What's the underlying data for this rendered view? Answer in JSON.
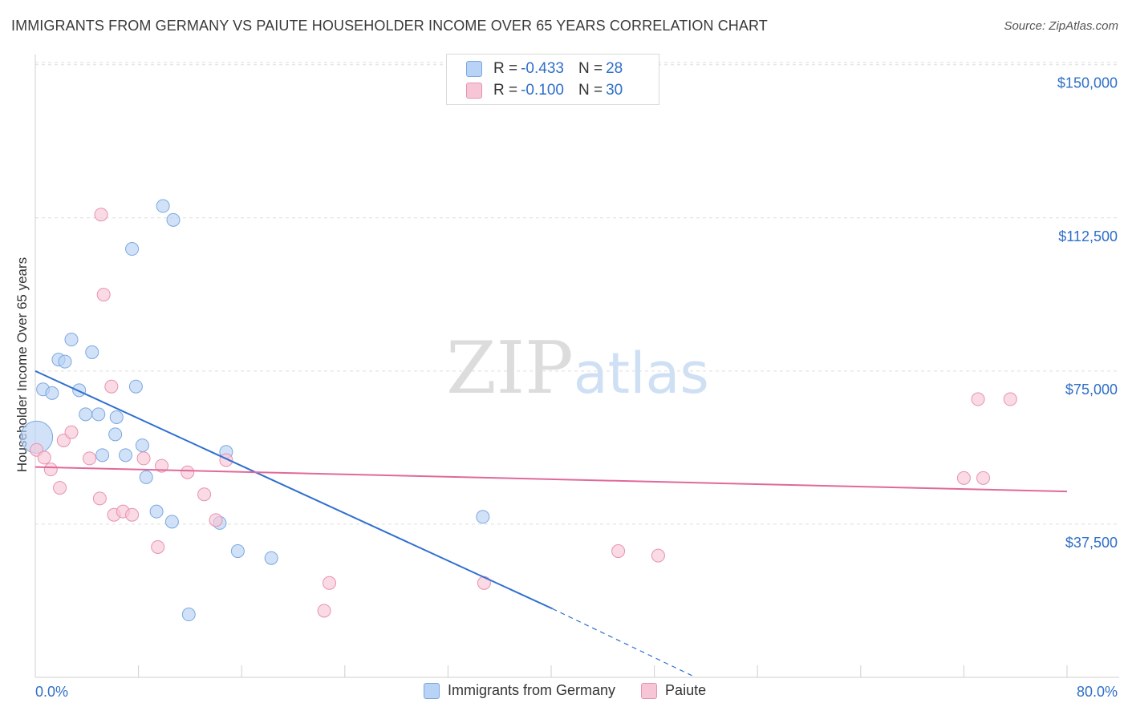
{
  "chart_data": {
    "type": "scatter",
    "title": "IMMIGRANTS FROM GERMANY VS PAIUTE HOUSEHOLDER INCOME OVER 65 YEARS CORRELATION CHART",
    "source": "Source: ZipAtlas.com",
    "xlabel": "",
    "ylabel": "Householder Income Over 65 years",
    "xlim": [
      0,
      80
    ],
    "ylim": [
      0,
      152500
    ],
    "x_tick_labels": [
      "0.0%",
      "80.0%"
    ],
    "y_ticks": [
      37500,
      75000,
      112500,
      150000
    ],
    "y_tick_labels": [
      "$37,500",
      "$75,000",
      "$112,500",
      "$150,000"
    ],
    "watermark": "ZIPatlas",
    "colors": {
      "germany_fill": "#b8d3f5",
      "germany_stroke": "#7aa8e0",
      "germany_line": "#2f6fd0",
      "paiute_fill": "#f7c6d6",
      "paiute_stroke": "#e892b0",
      "paiute_line": "#e0699a",
      "axis_text": "#2f6fc8",
      "grid": "#dedede"
    },
    "legend_stats": [
      {
        "r_label": "R =",
        "r_value": "-0.433",
        "n_label": "N =",
        "n_value": "28"
      },
      {
        "r_label": "R =",
        "r_value": "-0.100",
        "n_label": "N =",
        "n_value": "30"
      }
    ],
    "series": [
      {
        "name": "Immigrants from Germany",
        "points": [
          [
            0.1,
            58800,
            2.5
          ],
          [
            0.6,
            70500,
            1
          ],
          [
            1.3,
            69600,
            1
          ],
          [
            1.8,
            77800,
            1
          ],
          [
            2.3,
            77300,
            1
          ],
          [
            2.8,
            82700,
            1
          ],
          [
            3.4,
            70300,
            1
          ],
          [
            3.9,
            64400,
            1
          ],
          [
            4.4,
            79600,
            1
          ],
          [
            4.9,
            64400,
            1
          ],
          [
            5.2,
            54400,
            1
          ],
          [
            6.2,
            59500,
            1
          ],
          [
            6.3,
            63700,
            1
          ],
          [
            7.0,
            54400,
            1
          ],
          [
            7.5,
            104900,
            1
          ],
          [
            7.8,
            71200,
            1
          ],
          [
            8.3,
            56800,
            1
          ],
          [
            8.6,
            49000,
            1
          ],
          [
            9.4,
            40600,
            1
          ],
          [
            9.9,
            115400,
            1
          ],
          [
            10.6,
            38100,
            1
          ],
          [
            10.7,
            112000,
            1
          ],
          [
            11.9,
            15400,
            1
          ],
          [
            14.3,
            37800,
            1
          ],
          [
            14.8,
            55200,
            1
          ],
          [
            15.7,
            30900,
            1
          ],
          [
            18.3,
            29200,
            1
          ],
          [
            34.7,
            39300,
            1
          ]
        ]
      },
      {
        "name": "Paiute",
        "points": [
          [
            0.1,
            55700,
            1
          ],
          [
            0.7,
            53800,
            1
          ],
          [
            1.2,
            50900,
            1
          ],
          [
            1.9,
            46400,
            1
          ],
          [
            2.2,
            58000,
            1
          ],
          [
            2.8,
            60000,
            1
          ],
          [
            4.2,
            53600,
            1
          ],
          [
            5.0,
            43800,
            1
          ],
          [
            5.1,
            113300,
            1
          ],
          [
            5.9,
            71200,
            1
          ],
          [
            6.1,
            39800,
            1
          ],
          [
            6.8,
            40600,
            1
          ],
          [
            7.5,
            39800,
            1
          ],
          [
            8.4,
            53600,
            1
          ],
          [
            9.5,
            31900,
            1
          ],
          [
            9.8,
            51800,
            1
          ],
          [
            11.8,
            50200,
            1
          ],
          [
            13.1,
            44800,
            1
          ],
          [
            14.0,
            38500,
            1
          ],
          [
            14.8,
            53200,
            1
          ],
          [
            22.4,
            16300,
            1
          ],
          [
            22.8,
            23100,
            1
          ],
          [
            34.8,
            23100,
            1
          ],
          [
            45.2,
            30900,
            1
          ],
          [
            48.3,
            29800,
            1
          ],
          [
            72.0,
            48800,
            1
          ],
          [
            73.1,
            68100,
            1
          ],
          [
            73.5,
            48800,
            1
          ],
          [
            75.6,
            68100,
            1
          ],
          [
            5.3,
            93700,
            1
          ]
        ]
      }
    ],
    "trend_lines": [
      {
        "name": "Immigrants from Germany",
        "x": [
          0,
          40.1
        ],
        "y": [
          75000,
          16800
        ],
        "dash_x": [
          40.1,
          51.2
        ],
        "dash_y": [
          16800,
          0
        ]
      },
      {
        "name": "Paiute",
        "x": [
          0,
          80
        ],
        "y": [
          51500,
          45500
        ]
      }
    ]
  }
}
